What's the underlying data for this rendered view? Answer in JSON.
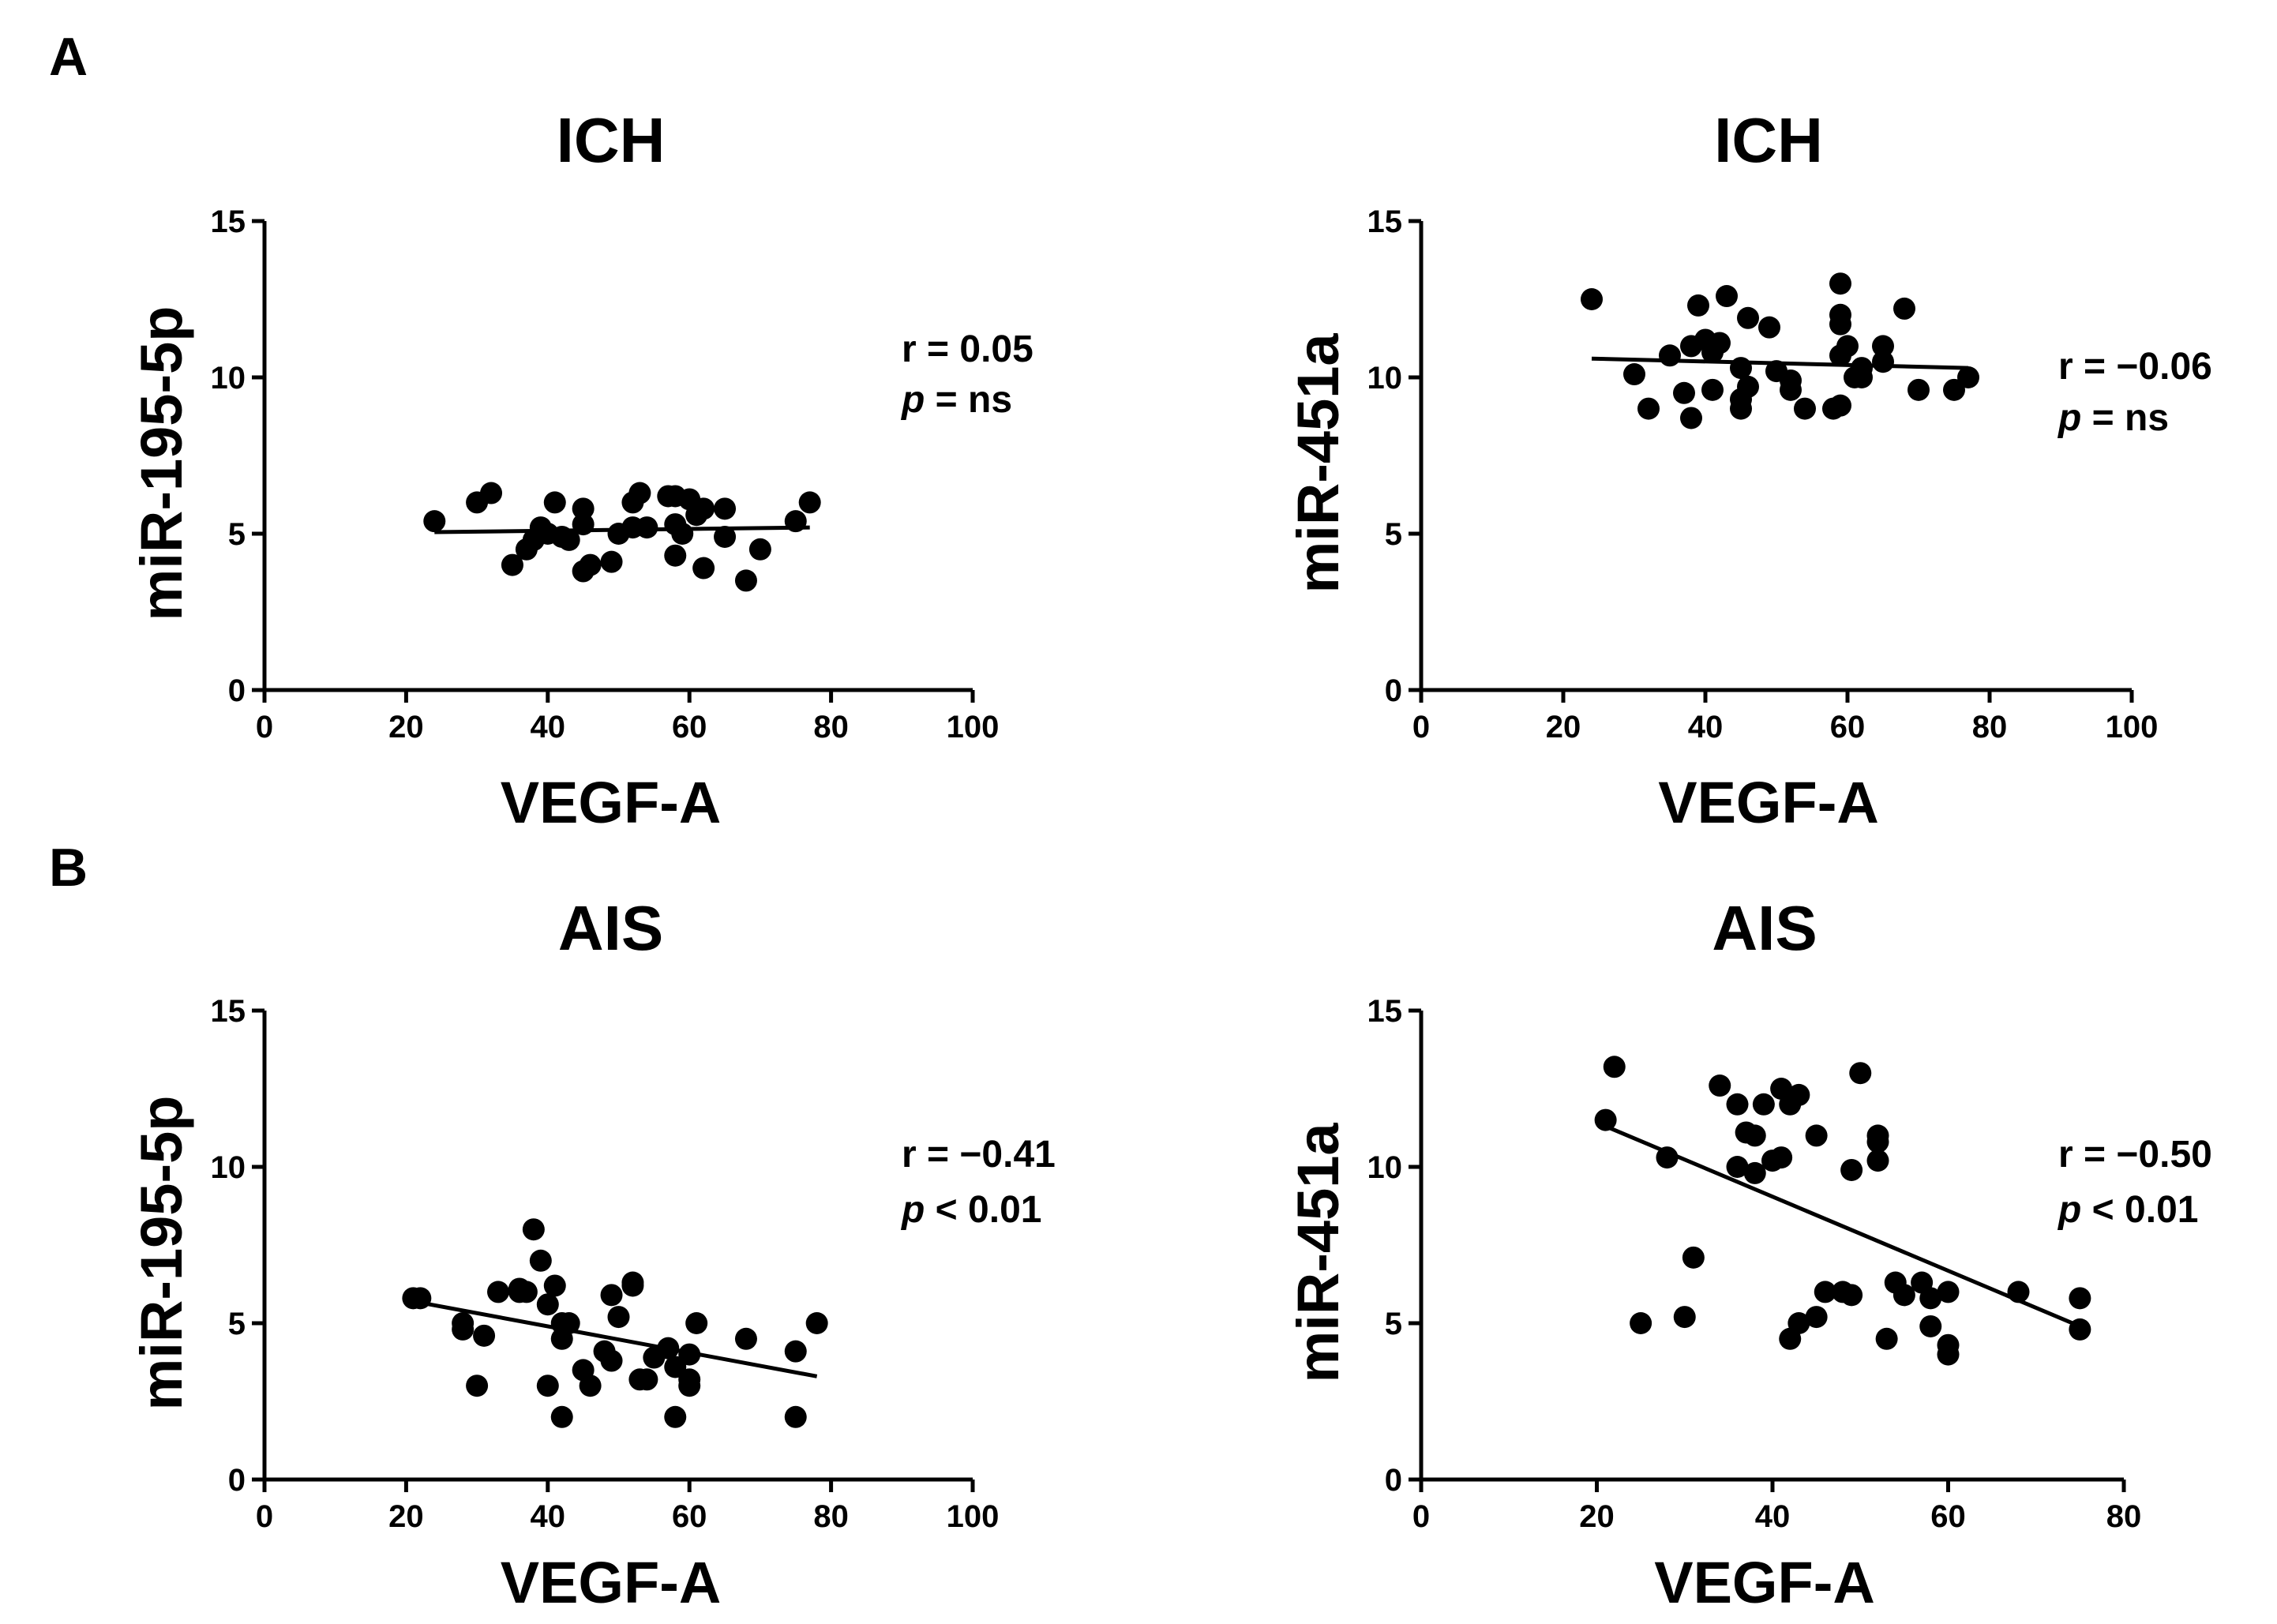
{
  "panels": [
    {
      "letter": "A"
    },
    {
      "letter": "B"
    }
  ],
  "chart_data": [
    {
      "type": "scatter",
      "panel": "A",
      "title": "ICH",
      "xlabel": "VEGF-A",
      "ylabel": "miR-195-5p",
      "xlim": [
        0,
        100
      ],
      "ylim": [
        0,
        15
      ],
      "xticks": [
        0,
        20,
        40,
        60,
        80,
        100
      ],
      "yticks": [
        0,
        5,
        10,
        15
      ],
      "stats": {
        "r": "r = 0.05",
        "p_symbol": "p",
        "p_value": " = ns"
      },
      "fit_line": {
        "x": [
          24,
          77
        ],
        "y": [
          5.05,
          5.2
        ]
      },
      "points": [
        [
          24,
          5.4
        ],
        [
          30,
          6.0
        ],
        [
          32,
          6.3
        ],
        [
          35,
          4.0
        ],
        [
          37,
          4.5
        ],
        [
          38,
          4.8
        ],
        [
          39,
          5.2
        ],
        [
          40,
          5.0
        ],
        [
          41,
          6.0
        ],
        [
          42,
          4.9
        ],
        [
          43,
          4.8
        ],
        [
          45,
          5.8
        ],
        [
          45,
          5.3
        ],
        [
          45,
          3.8
        ],
        [
          46,
          4.0
        ],
        [
          49,
          4.1
        ],
        [
          50,
          5.0
        ],
        [
          52,
          6.0
        ],
        [
          52,
          5.2
        ],
        [
          53,
          6.3
        ],
        [
          54,
          5.2
        ],
        [
          57,
          6.2
        ],
        [
          58,
          6.2
        ],
        [
          58,
          5.3
        ],
        [
          58,
          4.3
        ],
        [
          59,
          5.0
        ],
        [
          60,
          6.1
        ],
        [
          61,
          5.6
        ],
        [
          62,
          3.9
        ],
        [
          62,
          5.8
        ],
        [
          65,
          4.9
        ],
        [
          65,
          5.8
        ],
        [
          68,
          3.5
        ],
        [
          70,
          4.5
        ],
        [
          75,
          5.4
        ],
        [
          77,
          6.0
        ]
      ]
    },
    {
      "type": "scatter",
      "panel": "A",
      "title": "ICH",
      "xlabel": "VEGF-A",
      "ylabel": "miR-451a",
      "xlim": [
        0,
        100
      ],
      "ylim": [
        0,
        15
      ],
      "xticks": [
        0,
        20,
        40,
        60,
        80,
        100
      ],
      "yticks": [
        0,
        5,
        10,
        15
      ],
      "stats": {
        "r": "r = −0.06",
        "p_symbol": "p",
        "p_value": " = ns"
      },
      "fit_line": {
        "x": [
          24,
          77
        ],
        "y": [
          10.6,
          10.3
        ]
      },
      "points": [
        [
          24,
          12.5
        ],
        [
          30,
          10.1
        ],
        [
          32,
          9.0
        ],
        [
          35,
          10.7
        ],
        [
          37,
          9.5
        ],
        [
          38,
          11.0
        ],
        [
          38,
          8.7
        ],
        [
          39,
          12.3
        ],
        [
          40,
          11.2
        ],
        [
          41,
          10.8
        ],
        [
          41,
          9.6
        ],
        [
          42,
          11.1
        ],
        [
          43,
          12.6
        ],
        [
          45,
          10.3
        ],
        [
          45,
          9.3
        ],
        [
          45,
          9.0
        ],
        [
          46,
          11.9
        ],
        [
          46,
          9.7
        ],
        [
          49,
          11.6
        ],
        [
          50,
          10.2
        ],
        [
          52,
          9.9
        ],
        [
          52,
          9.6
        ],
        [
          54,
          9.0
        ],
        [
          58,
          9.0
        ],
        [
          59,
          13.0
        ],
        [
          59,
          12.0
        ],
        [
          59,
          11.7
        ],
        [
          59,
          10.7
        ],
        [
          59,
          9.1
        ],
        [
          60,
          11.0
        ],
        [
          61,
          10.0
        ],
        [
          62,
          10.3
        ],
        [
          62,
          10.0
        ],
        [
          65,
          11.0
        ],
        [
          65,
          10.5
        ],
        [
          68,
          12.2
        ],
        [
          70,
          9.6
        ],
        [
          75,
          9.6
        ],
        [
          77,
          10.0
        ]
      ]
    },
    {
      "type": "scatter",
      "panel": "B",
      "title": "AIS",
      "xlabel": "VEGF-A",
      "ylabel": "miR-195-5p",
      "xlim": [
        0,
        100
      ],
      "ylim": [
        0,
        15
      ],
      "xticks": [
        0,
        20,
        40,
        60,
        80,
        100
      ],
      "yticks": [
        0,
        5,
        10,
        15
      ],
      "stats": {
        "r": "r =  −0.41",
        "p_symbol": "p",
        "p_value": " < 0.01"
      },
      "fit_line": {
        "x": [
          21,
          78
        ],
        "y": [
          5.7,
          3.3
        ]
      },
      "points": [
        [
          21,
          5.8
        ],
        [
          22,
          5.8
        ],
        [
          28,
          5.0
        ],
        [
          28,
          4.8
        ],
        [
          30,
          3.0
        ],
        [
          31,
          4.6
        ],
        [
          33,
          6.0
        ],
        [
          36,
          6.0
        ],
        [
          36,
          6.1
        ],
        [
          37,
          6.0
        ],
        [
          38,
          8.0
        ],
        [
          39,
          7.0
        ],
        [
          40,
          5.6
        ],
        [
          40,
          3.0
        ],
        [
          41,
          6.2
        ],
        [
          42,
          5.0
        ],
        [
          42,
          4.5
        ],
        [
          42,
          2.0
        ],
        [
          43,
          5.0
        ],
        [
          45,
          3.5
        ],
        [
          46,
          3.0
        ],
        [
          48,
          4.1
        ],
        [
          49,
          5.9
        ],
        [
          49,
          3.8
        ],
        [
          50,
          5.2
        ],
        [
          52,
          6.2
        ],
        [
          52,
          6.3
        ],
        [
          53,
          3.2
        ],
        [
          54,
          3.2
        ],
        [
          55,
          3.9
        ],
        [
          57,
          4.2
        ],
        [
          58,
          3.6
        ],
        [
          58,
          2.0
        ],
        [
          60,
          4.0
        ],
        [
          60,
          3.2
        ],
        [
          60,
          3.0
        ],
        [
          61,
          5.0
        ],
        [
          68,
          4.5
        ],
        [
          75,
          4.1
        ],
        [
          75,
          2.0
        ],
        [
          78,
          5.0
        ]
      ]
    },
    {
      "type": "scatter",
      "panel": "B",
      "title": "AIS",
      "xlabel": "VEGF-A",
      "ylabel": "miR-451a",
      "xlim": [
        0,
        80
      ],
      "ylim": [
        0,
        15
      ],
      "xticks": [
        0,
        20,
        40,
        60,
        80
      ],
      "yticks": [
        0,
        5,
        10,
        15
      ],
      "stats": {
        "r": "r = −0.50",
        "p_symbol": "p",
        "p_value": " < 0.01"
      },
      "fit_line": {
        "x": [
          21,
          75
        ],
        "y": [
          11.3,
          4.9
        ]
      },
      "points": [
        [
          21,
          11.5
        ],
        [
          22,
          13.2
        ],
        [
          25,
          5.0
        ],
        [
          28,
          10.3
        ],
        [
          30,
          5.2
        ],
        [
          31,
          7.1
        ],
        [
          34,
          12.6
        ],
        [
          36,
          12.0
        ],
        [
          36,
          10.0
        ],
        [
          37,
          11.1
        ],
        [
          38,
          11.0
        ],
        [
          38,
          9.8
        ],
        [
          39,
          12.0
        ],
        [
          40,
          10.2
        ],
        [
          41,
          12.5
        ],
        [
          41,
          10.3
        ],
        [
          42,
          12.0
        ],
        [
          42,
          4.5
        ],
        [
          43,
          12.3
        ],
        [
          43,
          5.0
        ],
        [
          45,
          11.0
        ],
        [
          45,
          5.2
        ],
        [
          46,
          6.0
        ],
        [
          48,
          6.0
        ],
        [
          49,
          9.9
        ],
        [
          49,
          5.9
        ],
        [
          50,
          13.0
        ],
        [
          52,
          11.0
        ],
        [
          52,
          10.8
        ],
        [
          52,
          10.2
        ],
        [
          53,
          4.5
        ],
        [
          54,
          6.3
        ],
        [
          55,
          5.9
        ],
        [
          57,
          6.3
        ],
        [
          58,
          5.8
        ],
        [
          58,
          4.9
        ],
        [
          60,
          6.0
        ],
        [
          60,
          4.3
        ],
        [
          60,
          4.0
        ],
        [
          68,
          6.0
        ],
        [
          75,
          5.8
        ],
        [
          75,
          4.8
        ]
      ]
    }
  ]
}
